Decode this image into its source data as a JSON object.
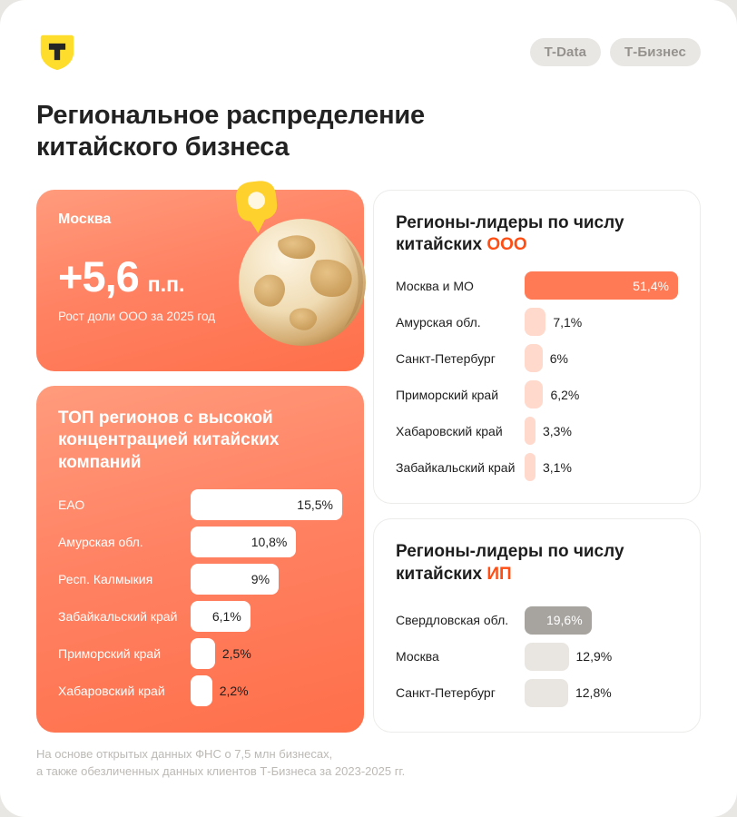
{
  "page": {
    "canvas_bg": "#ffffff",
    "outer_bg": "#e9e7e4",
    "accent": "#ff4e14",
    "brand_yellow": "#ffdd2d",
    "card_orange_top": "#ff9b7c",
    "card_orange_bottom": "#ff6f4a"
  },
  "header": {
    "logo_letter": "Т",
    "badges": [
      "T-Data",
      "Т-Бизнес"
    ]
  },
  "title": "Региональное распределение китайского бизнеса",
  "moscow": {
    "label": "Москва",
    "value": "+5,6",
    "unit": "п.п.",
    "caption": "Рост доли ООО за 2025 год"
  },
  "chart_data": [
    {
      "type": "bar",
      "orientation": "horizontal",
      "title": "ТОП регионов с высокой концентрацией китайских компаний",
      "categories": [
        "ЕАО",
        "Амурская обл.",
        "Респ. Калмыкия",
        "Забайкальский край",
        "Приморский край",
        "Хабаровский край"
      ],
      "values": [
        15.5,
        10.8,
        9,
        6.1,
        2.5,
        2.2
      ],
      "labels": [
        "15,5%",
        "10,8%",
        "9%",
        "6,1%",
        "2,5%",
        "2,2%"
      ],
      "xlim": [
        0,
        15.5
      ],
      "grid": false,
      "bar_color": "#ffffff",
      "value_inside_color": "#1e1e1e",
      "value_outside_color": "#1e1e1e"
    },
    {
      "type": "bar",
      "orientation": "horizontal",
      "title_prefix": "Регионы-лидеры по числу китайских",
      "title_accent": "ООО",
      "categories": [
        "Москва и МО",
        "Амурская обл.",
        "Санкт-Петербург",
        "Приморский край",
        "Хабаровский край",
        "Забайкальский край"
      ],
      "values": [
        51.4,
        7.1,
        6,
        6.2,
        3.3,
        3.1
      ],
      "labels": [
        "51,4%",
        "7,1%",
        "6%",
        "6,2%",
        "3,3%",
        "3,1%"
      ],
      "xlim": [
        0,
        51.4
      ],
      "grid": false,
      "highlight_index": 0,
      "bar_color": "#ffd9cb",
      "bar_highlight_color": "#ff7a55",
      "value_inside_color": "#ffffff",
      "value_outside_color": "#1e1e1e"
    },
    {
      "type": "bar",
      "orientation": "horizontal",
      "title_prefix": "Регионы-лидеры по числу китайских",
      "title_accent": "ИП",
      "categories": [
        "Свердловская обл.",
        "Москва",
        "Санкт-Петербург"
      ],
      "values": [
        19.6,
        12.9,
        12.8
      ],
      "labels": [
        "19,6%",
        "12,9%",
        "12,8%"
      ],
      "xlim": [
        0,
        45
      ],
      "grid": false,
      "highlight_index": 0,
      "bar_color": "#e9e6e2",
      "bar_highlight_color": "#a7a4a0",
      "value_inside_color": "#ffffff",
      "value_outside_color": "#1e1e1e"
    }
  ],
  "footer": {
    "line1": "На основе открытых данных ФНС о 7,5 млн бизнесах,",
    "line2": "а также обезличенных данных клиентов Т-Бизнеса за 2023-2025 гг."
  }
}
